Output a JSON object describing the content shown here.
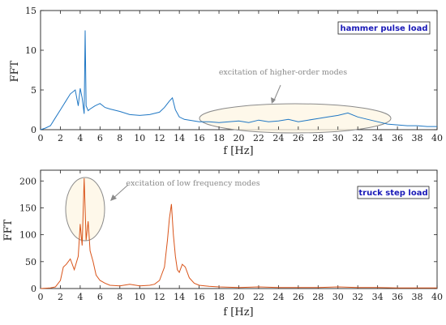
{
  "chart_data": [
    {
      "type": "line",
      "label": "hammer pulse load",
      "xlabel": "f [Hz]",
      "ylabel": "FFT",
      "xlim": [
        0,
        40
      ],
      "ylim": [
        0,
        15
      ],
      "xticks": [
        0,
        2,
        4,
        6,
        8,
        10,
        12,
        14,
        16,
        18,
        20,
        22,
        24,
        26,
        28,
        30,
        32,
        34,
        36,
        38,
        40
      ],
      "yticks": [
        0,
        5,
        10,
        15
      ],
      "color": "#1f77c4",
      "annotation": "excitation of higher-order modes",
      "series": [
        {
          "x": [
            0,
            0.5,
            1,
            1.5,
            2,
            2.5,
            3,
            3.5,
            3.8,
            4.0,
            4.2,
            4.4,
            4.5,
            4.6,
            4.8,
            5.0,
            5.5,
            6,
            6.5,
            7,
            8,
            9,
            10,
            11,
            12,
            12.5,
            13,
            13.3,
            13.6,
            14,
            14.5,
            15,
            16,
            17,
            18,
            19,
            20,
            21,
            22,
            23,
            24,
            25,
            26,
            27,
            28,
            29,
            30,
            31,
            32,
            33,
            34,
            35,
            36,
            37,
            38,
            39,
            40
          ],
          "y": [
            0,
            0.2,
            0.5,
            1.5,
            2.5,
            3.5,
            4.5,
            5.0,
            3.0,
            5.2,
            4.0,
            2.0,
            12.5,
            3.0,
            2.4,
            2.6,
            3.0,
            3.3,
            2.8,
            2.6,
            2.3,
            1.9,
            1.8,
            1.9,
            2.2,
            2.8,
            3.6,
            4.0,
            2.5,
            1.6,
            1.3,
            1.2,
            1.0,
            1.0,
            0.9,
            1.0,
            1.1,
            0.9,
            1.2,
            1.0,
            1.1,
            1.3,
            1.0,
            1.2,
            1.4,
            1.6,
            1.8,
            2.1,
            1.6,
            1.3,
            1.0,
            0.7,
            0.6,
            0.5,
            0.5,
            0.4,
            0.4
          ]
        }
      ]
    },
    {
      "type": "line",
      "label": "truck step load",
      "xlabel": "f [Hz]",
      "ylabel": "FFT",
      "xlim": [
        0,
        40
      ],
      "ylim": [
        0,
        220
      ],
      "xticks": [
        0,
        2,
        4,
        6,
        8,
        10,
        12,
        14,
        16,
        18,
        20,
        22,
        24,
        26,
        28,
        30,
        32,
        34,
        36,
        38,
        40
      ],
      "yticks": [
        0,
        50,
        100,
        150,
        200
      ],
      "color": "#d9541a",
      "annotation": "excitation of low frequency modes",
      "series": [
        {
          "x": [
            0,
            1,
            1.5,
            2,
            2.3,
            2.6,
            3.0,
            3.4,
            3.8,
            4.0,
            4.2,
            4.4,
            4.6,
            4.8,
            5.0,
            5.3,
            5.6,
            6.0,
            6.5,
            7,
            8,
            9,
            10,
            11,
            11.5,
            12,
            12.5,
            12.8,
            13.0,
            13.2,
            13.4,
            13.6,
            13.8,
            14.0,
            14.3,
            14.6,
            15.0,
            15.5,
            16,
            17,
            18,
            20,
            22,
            24,
            26,
            28,
            30,
            32,
            34,
            36,
            38,
            40
          ],
          "y": [
            0,
            1,
            3,
            15,
            40,
            45,
            55,
            35,
            60,
            120,
            80,
            205,
            90,
            125,
            70,
            50,
            25,
            15,
            10,
            6,
            5,
            8,
            5,
            6,
            8,
            15,
            40,
            90,
            130,
            157,
            100,
            60,
            35,
            30,
            45,
            40,
            20,
            10,
            6,
            4,
            3,
            2,
            3,
            2,
            2,
            2,
            3,
            2,
            2,
            1,
            1,
            1
          ]
        }
      ]
    }
  ]
}
